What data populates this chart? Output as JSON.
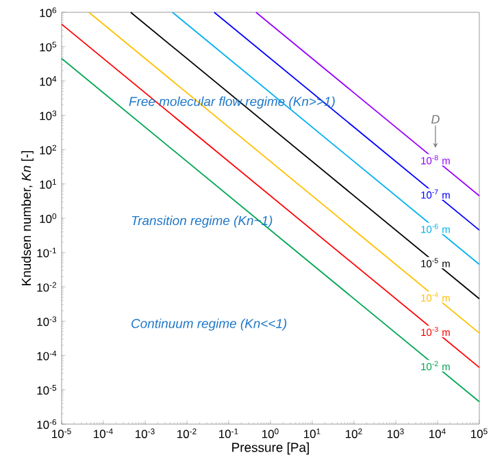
{
  "chart_data": {
    "type": "line",
    "log": "xy",
    "xlabel": "Pressure [Pa]",
    "ylabel": "Knudsen number, *Kn* [-]",
    "legend": false,
    "grid": false,
    "legend_title": "D",
    "xlim": [
      1e-05,
      100000.0
    ],
    "ylim": [
      1e-06,
      1000000.0
    ],
    "xticks": [
      {
        "value": 1e-05,
        "label": "10$^{-5}$"
      },
      {
        "value": 0.0001,
        "label": "10$^{-4}$"
      },
      {
        "value": 0.001,
        "label": "10$^{-3}$"
      },
      {
        "value": 0.01,
        "label": "10$^{-2}$"
      },
      {
        "value": 0.1,
        "label": "10$^{-1}$"
      },
      {
        "value": 1,
        "label": "10$^{0}$"
      },
      {
        "value": 10,
        "label": "10$^{1}$"
      },
      {
        "value": 100,
        "label": "10$^{2}$"
      },
      {
        "value": 1000,
        "label": "10$^{3}$"
      },
      {
        "value": 10000,
        "label": "10$^{4}$"
      },
      {
        "value": 100000,
        "label": "10$^{5}$"
      }
    ],
    "yticks": [
      {
        "value": 1e-06,
        "label": "10$^{-6}$"
      },
      {
        "value": 1e-05,
        "label": "10$^{-5}$"
      },
      {
        "value": 0.0001,
        "label": "10$^{-4}$"
      },
      {
        "value": 0.001,
        "label": "10$^{-3}$"
      },
      {
        "value": 0.01,
        "label": "10$^{-2}$"
      },
      {
        "value": 0.1,
        "label": "10$^{-1}$"
      },
      {
        "value": 1,
        "label": "10$^{0}$"
      },
      {
        "value": 10,
        "label": "10$^{1}$"
      },
      {
        "value": 100,
        "label": "10$^{2}$"
      },
      {
        "value": 1000,
        "label": "10$^{3}$"
      },
      {
        "value": 10000,
        "label": "10$^{4}$"
      },
      {
        "value": 100000,
        "label": "10$^{5}$"
      },
      {
        "value": 1000000,
        "label": "10$^{6}$"
      }
    ],
    "series": [
      {
        "name": "10$^{-2}$ m",
        "color": "#00a651",
        "x": [
          1e-05,
          100000.0
        ],
        "values": [
          45000.0,
          4.5e-06
        ]
      },
      {
        "name": "10$^{-3}$ m",
        "color": "#ff0000",
        "x": [
          1e-05,
          100000.0
        ],
        "values": [
          450000.0,
          4.5e-05
        ]
      },
      {
        "name": "10$^{-4}$ m",
        "color": "#ffc000",
        "x": [
          4.5e-05,
          100000.0
        ],
        "values": [
          1000000.0,
          0.00045
        ]
      },
      {
        "name": "10$^{-5}$ m",
        "color": "#000000",
        "x": [
          0.00045,
          100000.0
        ],
        "values": [
          1000000.0,
          0.0045
        ]
      },
      {
        "name": "10$^{-6}$ m",
        "color": "#00b0f0",
        "x": [
          0.0045,
          100000.0
        ],
        "values": [
          1000000.0,
          0.045
        ]
      },
      {
        "name": "10$^{-7}$ m",
        "color": "#0000ff",
        "x": [
          0.045,
          100000.0
        ],
        "values": [
          1000000.0,
          0.45
        ]
      },
      {
        "name": "10$^{-8}$ m",
        "color": "#9900ff",
        "x": [
          0.45,
          100000.0
        ],
        "values": [
          1000000.0,
          4.5
        ]
      }
    ],
    "annotations": [
      "Free molecular flow regime (*Kn*>>1)",
      "Transition regime (*Kn*~1)",
      "Continuum regime (*Kn*<<1)"
    ]
  }
}
